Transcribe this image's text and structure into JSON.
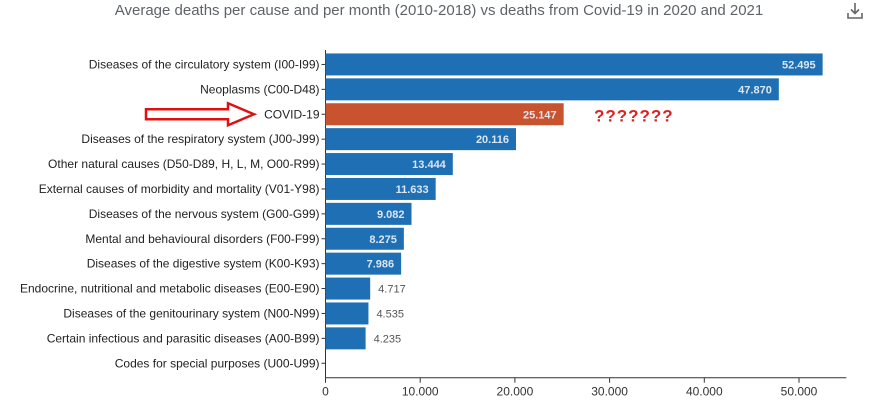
{
  "header": {
    "title": "Average deaths per cause and per month (2010-2018) vs deaths from Covid-19 in 2020 and 2021",
    "download_icon": "download-icon"
  },
  "colors": {
    "bar": "#1f6fb4",
    "highlight": "#c8532e",
    "arrow": "#e01010",
    "annotation": "#e02020"
  },
  "chart_data": {
    "type": "bar",
    "orientation": "horizontal",
    "title": "Average deaths per cause and per month (2010-2018) vs deaths from Covid-19 in 2020 and 2021",
    "categories": [
      "Diseases of the circulatory system (I00-I99)",
      "Neoplasms (C00-D48)",
      "COVID-19",
      "Diseases of the respiratory system (J00-J99)",
      "Other natural causes (D50-D89, H, L, M, O00-R99)",
      "External causes of morbidity and mortality (V01-Y98)",
      "Diseases of the nervous system (G00-G99)",
      "Mental and behavioural disorders (F00-F99)",
      "Diseases of the digestive system (K00-K93)",
      "Endocrine, nutritional and metabolic diseases (E00-E90)",
      "Diseases of the genitourinary system (N00-N99)",
      "Certain infectious and parasitic diseases (A00-B99)",
      "Codes for special purposes (U00-U99)"
    ],
    "values": [
      52495,
      47870,
      25147,
      20116,
      13444,
      11633,
      9082,
      8275,
      7986,
      4717,
      4535,
      4235,
      0
    ],
    "value_labels": [
      "52.495",
      "47.870",
      "25.147",
      "20.116",
      "13.444",
      "11.633",
      "9.082",
      "8.275",
      "7.986",
      "4.717",
      "4.535",
      "4.235",
      ""
    ],
    "highlight_category": "COVID-19",
    "xlim": [
      0,
      55000
    ],
    "x_ticks": [
      0,
      10000,
      20000,
      30000,
      40000,
      50000
    ],
    "x_tick_labels": [
      "0",
      "10.000",
      "20.000",
      "30.000",
      "40.000",
      "50.000"
    ],
    "grid": false,
    "annotation": "???????"
  }
}
